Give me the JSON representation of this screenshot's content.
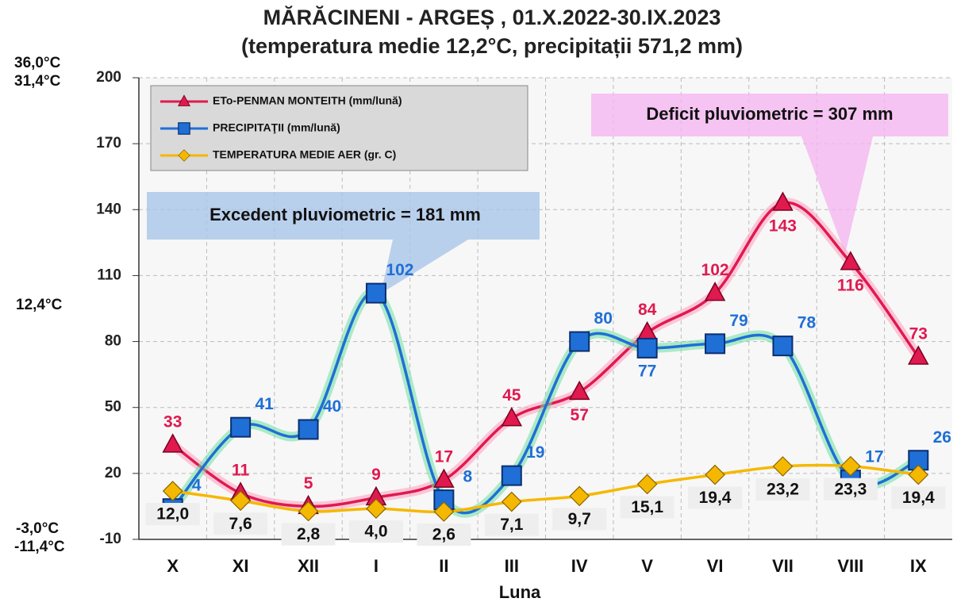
{
  "chart_data": {
    "type": "line",
    "title": "MĂRĂCINENI - ARGEȘ , 01.X.2022-30.IX.2023",
    "subtitle": "(temperatura medie 12,2°C, precipitații 571,2 mm)",
    "x_label": "Luna",
    "categories": [
      "X",
      "XI",
      "XII",
      "I",
      "II",
      "III",
      "IV",
      "V",
      "VI",
      "VII",
      "VIII",
      "IX"
    ],
    "ylim": [
      -10,
      200
    ],
    "yticks": [
      -10,
      20,
      50,
      80,
      110,
      140,
      170,
      200
    ],
    "grid": true,
    "legend": "upper left",
    "temperature_labels": [
      "36,0°C",
      "31,4°C",
      "12,4°C",
      "-3,0°C",
      "-11,4°C"
    ],
    "annotations": [
      "Excedent pluviometric = 181 mm",
      "Deficit pluviometric = 307 mm"
    ],
    "series": [
      {
        "name": "ETo-PENMAN MONTEITH (mm/lună)",
        "color": "#e0194f",
        "marker": "triangle",
        "values": [
          33,
          11,
          5,
          9,
          17,
          45,
          57,
          84,
          102,
          143,
          116,
          73
        ]
      },
      {
        "name": "PRECIPITAŢII (mm/lună)",
        "color": "#1f6fd6",
        "marker": "square",
        "values": [
          4,
          41,
          40,
          102,
          8,
          19,
          80,
          77,
          79,
          78,
          17,
          26
        ]
      },
      {
        "name": "TEMPERATURA MEDIE AER (gr. C)",
        "color": "#f5b800",
        "marker": "diamond",
        "values": [
          12.0,
          7.6,
          2.8,
          4.0,
          2.6,
          7.1,
          9.7,
          15.1,
          19.4,
          23.2,
          23.3,
          19.4
        ],
        "value_labels": [
          "12,0",
          "7,6",
          "2,8",
          "4,0",
          "2,6",
          "7,1",
          "9,7",
          "15,1",
          "19,4",
          "23,2",
          "23,3",
          "19,4"
        ]
      }
    ]
  }
}
